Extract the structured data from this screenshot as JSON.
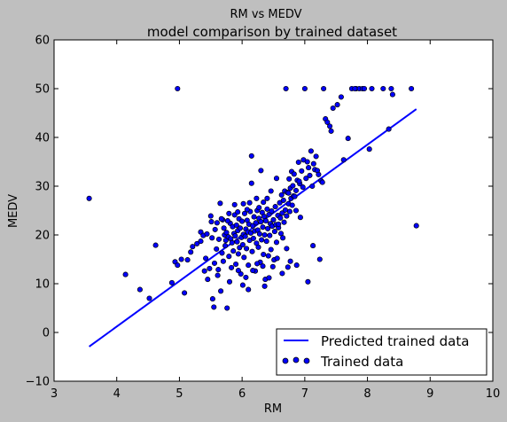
{
  "figure": {
    "suptitle": "RM vs MEDV",
    "background": "#bfbfbf",
    "plot_background": "#ffffff"
  },
  "chart_data": {
    "type": "scatter",
    "title": "model comparison by trained dataset",
    "xlabel": "RM",
    "ylabel": "MEDV",
    "xlim": [
      3,
      10
    ],
    "ylim": [
      -10,
      60
    ],
    "xticks": [
      3,
      4,
      5,
      6,
      7,
      8,
      9,
      10
    ],
    "yticks": [
      -10,
      0,
      10,
      20,
      30,
      40,
      50,
      60
    ],
    "grid": false,
    "legend_position": "bottom-right",
    "line_series": {
      "name": "Predicted trained data",
      "color": "#0000ff",
      "x": [
        3.56,
        8.78
      ],
      "y": [
        -2.9,
        45.8
      ]
    },
    "scatter_series": {
      "name": "Trained data",
      "color": "#0000ff",
      "edge_color": "#000000",
      "points": [
        [
          3.56,
          27.5
        ],
        [
          4.97,
          50.0
        ],
        [
          8.78,
          21.9
        ],
        [
          4.14,
          11.9
        ],
        [
          4.37,
          8.8
        ],
        [
          4.52,
          7.0
        ],
        [
          4.62,
          17.9
        ],
        [
          4.88,
          10.2
        ],
        [
          4.93,
          14.5
        ],
        [
          4.97,
          13.8
        ],
        [
          5.03,
          15.0
        ],
        [
          5.08,
          8.1
        ],
        [
          5.13,
          14.9
        ],
        [
          5.18,
          16.5
        ],
        [
          5.21,
          17.6
        ],
        [
          5.28,
          18.2
        ],
        [
          5.34,
          20.6
        ],
        [
          5.38,
          19.9
        ],
        [
          5.4,
          12.6
        ],
        [
          5.42,
          15.2
        ],
        [
          5.45,
          10.9
        ],
        [
          5.48,
          13.1
        ],
        [
          5.5,
          23.9
        ],
        [
          5.52,
          19.4
        ],
        [
          5.53,
          6.9
        ],
        [
          5.55,
          5.2
        ],
        [
          5.56,
          14.2
        ],
        [
          5.57,
          21.1
        ],
        [
          5.59,
          17.1
        ],
        [
          5.61,
          11.7
        ],
        [
          5.62,
          12.9
        ],
        [
          5.63,
          19.1
        ],
        [
          5.65,
          26.5
        ],
        [
          5.66,
          8.5
        ],
        [
          5.68,
          16.3
        ],
        [
          5.69,
          23.1
        ],
        [
          5.7,
          14.6
        ],
        [
          5.72,
          20.0
        ],
        [
          5.73,
          17.8
        ],
        [
          5.74,
          18.9
        ],
        [
          5.75,
          20.5
        ],
        [
          5.76,
          5.0
        ],
        [
          5.78,
          19.6
        ],
        [
          5.79,
          15.6
        ],
        [
          5.8,
          10.4
        ],
        [
          5.81,
          22.4
        ],
        [
          5.82,
          19.2
        ],
        [
          5.83,
          13.3
        ],
        [
          5.84,
          18.4
        ],
        [
          5.85,
          21.7
        ],
        [
          5.86,
          16.7
        ],
        [
          5.87,
          20.3
        ],
        [
          5.88,
          24.1
        ],
        [
          5.89,
          19.8
        ],
        [
          5.9,
          14.0
        ],
        [
          5.91,
          22.0
        ],
        [
          5.92,
          18.6
        ],
        [
          5.93,
          20.9
        ],
        [
          5.94,
          16.1
        ],
        [
          5.95,
          23.3
        ],
        [
          5.96,
          17.4
        ],
        [
          5.97,
          21.4
        ],
        [
          5.98,
          12.0
        ],
        [
          5.99,
          19.5
        ],
        [
          6.0,
          22.8
        ],
        [
          6.01,
          18.0
        ],
        [
          6.02,
          20.1
        ],
        [
          6.03,
          15.4
        ],
        [
          6.04,
          24.4
        ],
        [
          6.05,
          19.7
        ],
        [
          6.06,
          21.2
        ],
        [
          6.07,
          17.2
        ],
        [
          6.08,
          23.0
        ],
        [
          6.09,
          20.6
        ],
        [
          6.1,
          13.8
        ],
        [
          6.11,
          22.2
        ],
        [
          6.12,
          18.9
        ],
        [
          6.13,
          24.8
        ],
        [
          6.14,
          20.4
        ],
        [
          6.15,
          36.2
        ],
        [
          6.16,
          16.6
        ],
        [
          6.17,
          21.9
        ],
        [
          6.18,
          19.3
        ],
        [
          6.19,
          23.7
        ],
        [
          6.2,
          20.8
        ],
        [
          6.21,
          12.6
        ],
        [
          6.22,
          22.5
        ],
        [
          6.23,
          18.3
        ],
        [
          6.24,
          25.0
        ],
        [
          6.25,
          21.0
        ],
        [
          6.26,
          17.5
        ],
        [
          6.27,
          23.4
        ],
        [
          6.28,
          20.2
        ],
        [
          6.29,
          14.4
        ],
        [
          6.3,
          22.7
        ],
        [
          6.31,
          19.0
        ],
        [
          6.32,
          24.6
        ],
        [
          6.33,
          21.6
        ],
        [
          6.34,
          16.0
        ],
        [
          6.35,
          23.8
        ],
        [
          6.36,
          20.0
        ],
        [
          6.37,
          10.9
        ],
        [
          6.38,
          22.9
        ],
        [
          6.39,
          18.7
        ],
        [
          6.4,
          25.3
        ],
        [
          6.41,
          21.3
        ],
        [
          6.42,
          15.7
        ],
        [
          6.43,
          24.2
        ],
        [
          6.44,
          19.9
        ],
        [
          6.45,
          22.3
        ],
        [
          6.46,
          17.0
        ],
        [
          6.47,
          24.9
        ],
        [
          6.48,
          21.8
        ],
        [
          6.5,
          23.1
        ],
        [
          6.51,
          14.9
        ],
        [
          6.52,
          20.7
        ],
        [
          6.53,
          25.8
        ],
        [
          6.54,
          22.1
        ],
        [
          6.55,
          18.5
        ],
        [
          6.57,
          24.0
        ],
        [
          6.58,
          21.5
        ],
        [
          6.6,
          26.6
        ],
        [
          6.61,
          23.5
        ],
        [
          6.62,
          20.3
        ],
        [
          6.63,
          28.2
        ],
        [
          6.64,
          24.5
        ],
        [
          6.65,
          19.4
        ],
        [
          6.66,
          27.1
        ],
        [
          6.67,
          22.6
        ],
        [
          6.68,
          29.0
        ],
        [
          6.69,
          25.1
        ],
        [
          6.7,
          50.0
        ],
        [
          6.71,
          23.9
        ],
        [
          6.72,
          28.7
        ],
        [
          6.73,
          13.4
        ],
        [
          6.74,
          26.4
        ],
        [
          6.75,
          31.5
        ],
        [
          6.76,
          24.8
        ],
        [
          6.77,
          29.6
        ],
        [
          6.78,
          27.5
        ],
        [
          6.79,
          33.0
        ],
        [
          6.8,
          26.1
        ],
        [
          6.81,
          30.1
        ],
        [
          6.82,
          28.0
        ],
        [
          6.83,
          32.5
        ],
        [
          6.84,
          27.9
        ],
        [
          6.86,
          29.1
        ],
        [
          6.88,
          31.2
        ],
        [
          6.9,
          34.9
        ],
        [
          6.92,
          30.5
        ],
        [
          6.93,
          23.6
        ],
        [
          6.95,
          33.1
        ],
        [
          6.97,
          29.8
        ],
        [
          6.98,
          35.4
        ],
        [
          7.0,
          50.0
        ],
        [
          7.02,
          31.6
        ],
        [
          7.04,
          35.0
        ],
        [
          7.06,
          33.8
        ],
        [
          7.08,
          32.2
        ],
        [
          7.1,
          37.2
        ],
        [
          7.12,
          30.0
        ],
        [
          7.14,
          34.6
        ],
        [
          7.16,
          33.4
        ],
        [
          7.18,
          36.1
        ],
        [
          7.2,
          33.2
        ],
        [
          7.22,
          32.4
        ],
        [
          7.24,
          15.0
        ],
        [
          7.26,
          31.1
        ],
        [
          7.28,
          30.8
        ],
        [
          7.3,
          50.0
        ],
        [
          7.33,
          43.8
        ],
        [
          7.36,
          43.1
        ],
        [
          7.4,
          42.3
        ],
        [
          7.42,
          41.3
        ],
        [
          7.45,
          46.0
        ],
        [
          7.52,
          46.7
        ],
        [
          7.58,
          48.3
        ],
        [
          7.62,
          35.4
        ],
        [
          7.69,
          39.8
        ],
        [
          7.75,
          50.0
        ],
        [
          7.82,
          50.0
        ],
        [
          7.87,
          50.0
        ],
        [
          7.92,
          50.0
        ],
        [
          8.03,
          37.6
        ],
        [
          8.25,
          50.0
        ],
        [
          8.34,
          41.7
        ],
        [
          8.4,
          48.8
        ],
        [
          8.38,
          50.0
        ],
        [
          8.7,
          50.0
        ],
        [
          8.07,
          50.0
        ],
        [
          7.8,
          50.0
        ],
        [
          7.95,
          50.0
        ],
        [
          5.34,
          18.7
        ],
        [
          5.44,
          20.2
        ],
        [
          5.51,
          22.7
        ],
        [
          5.6,
          22.5
        ],
        [
          5.67,
          23.3
        ],
        [
          5.71,
          21.4
        ],
        [
          5.77,
          22.9
        ],
        [
          5.94,
          12.7
        ],
        [
          6.01,
          9.7
        ],
        [
          6.06,
          11.3
        ],
        [
          6.1,
          8.8
        ],
        [
          6.17,
          12.7
        ],
        [
          6.24,
          14.1
        ],
        [
          6.33,
          13.6
        ],
        [
          6.36,
          9.5
        ],
        [
          6.43,
          11.2
        ],
        [
          6.49,
          13.5
        ],
        [
          6.56,
          15.2
        ],
        [
          6.64,
          12.1
        ],
        [
          6.71,
          17.2
        ],
        [
          6.77,
          14.6
        ],
        [
          6.87,
          13.8
        ],
        [
          7.05,
          10.4
        ],
        [
          7.13,
          17.8
        ],
        [
          6.15,
          30.6
        ],
        [
          6.3,
          33.2
        ],
        [
          6.46,
          29.0
        ],
        [
          6.55,
          31.6
        ],
        [
          6.74,
          28.6
        ],
        [
          6.86,
          25.0
        ],
        [
          6.91,
          31.0
        ],
        [
          6.23,
          27.5
        ],
        [
          6.34,
          26.7
        ],
        [
          6.4,
          27.5
        ],
        [
          6.58,
          22.2
        ],
        [
          6.02,
          26.4
        ],
        [
          5.88,
          26.2
        ],
        [
          5.79,
          24.4
        ],
        [
          5.93,
          24.7
        ],
        [
          6.08,
          25.2
        ],
        [
          6.12,
          26.6
        ],
        [
          6.27,
          25.6
        ]
      ]
    }
  }
}
